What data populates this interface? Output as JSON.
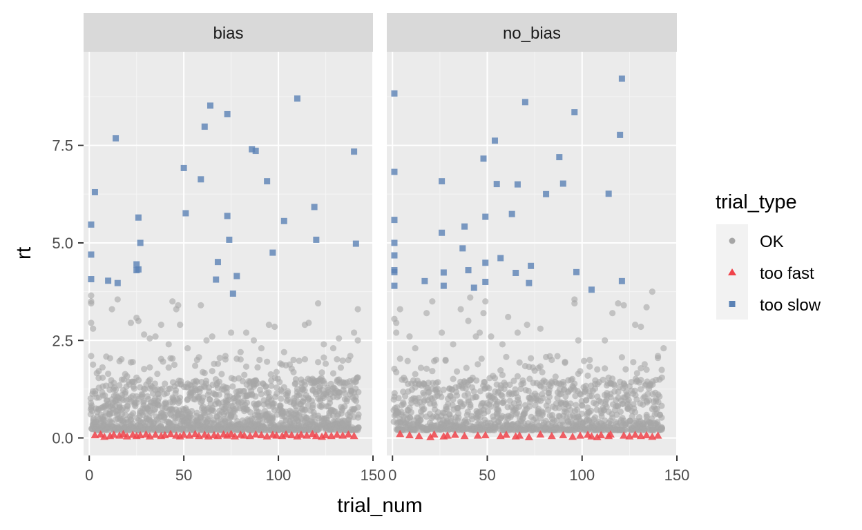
{
  "chart_data": {
    "type": "scatter",
    "facet_by": "subject type",
    "panels": [
      {
        "label": "bias"
      },
      {
        "label": "no_bias"
      }
    ],
    "xlabel": "trial_num",
    "ylabel": "rt",
    "xlim": [
      -3,
      150
    ],
    "ylim": [
      -0.45,
      9.9
    ],
    "x_ticks": [
      0,
      50,
      100,
      150
    ],
    "y_ticks": [
      0.0,
      2.5,
      5.0,
      7.5
    ],
    "x_tick_labels": [
      "0",
      "50",
      "100",
      "150"
    ],
    "y_tick_labels": [
      "0.0",
      "2.5",
      "5.0",
      "7.5"
    ],
    "grid": true,
    "legend": {
      "title": "trial_type",
      "position": "right",
      "entries": [
        {
          "label": "OK",
          "shape": "circle",
          "color": "#a6a6a6"
        },
        {
          "label": "too fast",
          "shape": "triangle",
          "color": "#f0444b"
        },
        {
          "label": "too slow",
          "shape": "square",
          "color": "#5b82b5"
        }
      ]
    },
    "series": [
      {
        "name": "too slow",
        "panel": "bias",
        "points": [
          [
            1,
            5.47
          ],
          [
            1,
            4.7
          ],
          [
            1,
            4.07
          ],
          [
            3,
            6.3
          ],
          [
            10,
            4.03
          ],
          [
            14,
            7.68
          ],
          [
            15,
            3.97
          ],
          [
            25,
            4.45
          ],
          [
            25,
            4.3
          ],
          [
            26,
            5.65
          ],
          [
            26,
            4.32
          ],
          [
            27,
            5.0
          ],
          [
            50,
            6.92
          ],
          [
            51,
            5.76
          ],
          [
            59,
            6.63
          ],
          [
            61,
            7.98
          ],
          [
            64,
            8.52
          ],
          [
            67,
            4.06
          ],
          [
            68,
            4.51
          ],
          [
            73,
            8.3
          ],
          [
            73,
            5.69
          ],
          [
            74,
            5.08
          ],
          [
            76,
            3.7
          ],
          [
            78,
            4.15
          ],
          [
            86,
            7.4
          ],
          [
            88,
            7.36
          ],
          [
            94,
            6.58
          ],
          [
            97,
            4.75
          ],
          [
            103,
            5.56
          ],
          [
            110,
            8.7
          ],
          [
            119,
            5.92
          ],
          [
            120,
            5.08
          ],
          [
            140,
            7.34
          ],
          [
            141,
            4.98
          ]
        ]
      },
      {
        "name": "too slow",
        "panel": "no_bias",
        "points": [
          [
            1,
            8.83
          ],
          [
            1,
            6.82
          ],
          [
            1,
            5.59
          ],
          [
            1,
            5.0
          ],
          [
            1,
            4.68
          ],
          [
            1,
            4.3
          ],
          [
            1,
            4.25
          ],
          [
            1,
            3.9
          ],
          [
            17,
            4.02
          ],
          [
            26,
            6.58
          ],
          [
            26,
            5.26
          ],
          [
            27,
            4.24
          ],
          [
            27,
            3.9
          ],
          [
            37,
            4.86
          ],
          [
            38,
            5.42
          ],
          [
            40,
            4.3
          ],
          [
            43,
            3.85
          ],
          [
            48,
            7.16
          ],
          [
            49,
            5.67
          ],
          [
            49,
            4.49
          ],
          [
            49,
            4.0
          ],
          [
            54,
            7.62
          ],
          [
            55,
            6.51
          ],
          [
            57,
            4.61
          ],
          [
            63,
            5.74
          ],
          [
            65,
            4.23
          ],
          [
            66,
            6.5
          ],
          [
            70,
            8.61
          ],
          [
            72,
            3.97
          ],
          [
            73,
            4.41
          ],
          [
            81,
            6.25
          ],
          [
            88,
            7.2
          ],
          [
            90,
            6.52
          ],
          [
            96,
            8.35
          ],
          [
            97,
            4.25
          ],
          [
            105,
            3.8
          ],
          [
            114,
            6.26
          ],
          [
            120,
            7.77
          ],
          [
            121,
            4.02
          ],
          [
            121,
            9.21
          ]
        ]
      },
      {
        "name": "too fast",
        "panel": "bias",
        "generated": false,
        "points": [
          [
            3,
            0.07
          ],
          [
            6,
            0.09
          ],
          [
            8,
            0.03
          ],
          [
            11,
            0.05
          ],
          [
            13,
            0.08
          ],
          [
            16,
            0.06
          ],
          [
            18,
            0.1
          ],
          [
            20,
            0.04
          ],
          [
            23,
            0.08
          ],
          [
            25,
            0.05
          ],
          [
            27,
            0.07
          ],
          [
            30,
            0.09
          ],
          [
            32,
            0.04
          ],
          [
            35,
            0.08
          ],
          [
            38,
            0.05
          ],
          [
            40,
            0.07
          ],
          [
            43,
            0.1
          ],
          [
            46,
            0.06
          ],
          [
            48,
            0.04
          ],
          [
            50,
            0.08
          ],
          [
            53,
            0.06
          ],
          [
            56,
            0.1
          ],
          [
            58,
            0.05
          ],
          [
            61,
            0.08
          ],
          [
            63,
            0.04
          ],
          [
            66,
            0.07
          ],
          [
            68,
            0.05
          ],
          [
            71,
            0.09
          ],
          [
            73,
            0.06
          ],
          [
            75,
            0.1
          ],
          [
            77,
            0.04
          ],
          [
            80,
            0.08
          ],
          [
            82,
            0.06
          ],
          [
            85,
            0.05
          ],
          [
            88,
            0.09
          ],
          [
            91,
            0.07
          ],
          [
            94,
            0.04
          ],
          [
            97,
            0.08
          ],
          [
            99,
            0.06
          ],
          [
            102,
            0.05
          ],
          [
            104,
            0.09
          ],
          [
            107,
            0.07
          ],
          [
            110,
            0.04
          ],
          [
            112,
            0.08
          ],
          [
            115,
            0.06
          ],
          [
            118,
            0.1
          ],
          [
            120,
            0.05
          ],
          [
            123,
            0.03
          ],
          [
            125,
            0.07
          ],
          [
            128,
            0.05
          ],
          [
            131,
            0.08
          ],
          [
            134,
            0.06
          ],
          [
            137,
            0.09
          ],
          [
            140,
            0.05
          ]
        ]
      },
      {
        "name": "too fast",
        "panel": "no_bias",
        "points": [
          [
            4,
            0.1
          ],
          [
            9,
            0.07
          ],
          [
            14,
            0.05
          ],
          [
            20,
            0.02
          ],
          [
            22,
            0.09
          ],
          [
            27,
            0.04
          ],
          [
            29,
            0.06
          ],
          [
            33,
            0.08
          ],
          [
            38,
            0.05
          ],
          [
            45,
            0.06
          ],
          [
            49,
            0.07
          ],
          [
            57,
            0.05
          ],
          [
            60,
            0.08
          ],
          [
            65,
            0.04
          ],
          [
            67,
            0.06
          ],
          [
            72,
            0.02
          ],
          [
            78,
            0.09
          ],
          [
            84,
            0.05
          ],
          [
            90,
            0.07
          ],
          [
            95,
            0.03
          ],
          [
            99,
            0.06
          ],
          [
            103,
            0.08
          ],
          [
            105,
            0.04
          ],
          [
            108,
            0.02
          ],
          [
            110,
            0.07
          ],
          [
            114,
            0.05
          ],
          [
            115,
            0.09
          ],
          [
            122,
            0.06
          ],
          [
            125,
            0.04
          ],
          [
            128,
            0.08
          ],
          [
            131,
            0.05
          ],
          [
            134,
            0.07
          ],
          [
            137,
            0.03
          ],
          [
            140,
            0.06
          ]
        ]
      },
      {
        "name": "OK",
        "panel": "bias",
        "outliers": [
          [
            1,
            3.65
          ],
          [
            1,
            3.5
          ],
          [
            1,
            3.45
          ],
          [
            1,
            2.95
          ],
          [
            2,
            2.8
          ],
          [
            1,
            2.1
          ],
          [
            12,
            3.3
          ],
          [
            15,
            3.55
          ],
          [
            22,
            2.95
          ],
          [
            25,
            3.08
          ],
          [
            26,
            3.0
          ],
          [
            29,
            2.65
          ],
          [
            32,
            2.55
          ],
          [
            35,
            2.6
          ],
          [
            38,
            2.9
          ],
          [
            42,
            2.4
          ],
          [
            44,
            3.5
          ],
          [
            46,
            3.3
          ],
          [
            47,
            3.4
          ],
          [
            48,
            2.9
          ],
          [
            52,
            2.3
          ],
          [
            57,
            2.0
          ],
          [
            59,
            3.4
          ],
          [
            62,
            2.5
          ],
          [
            65,
            2.6
          ],
          [
            68,
            1.9
          ],
          [
            72,
            2.1
          ],
          [
            75,
            2.7
          ],
          [
            80,
            2.2
          ],
          [
            83,
            2.7
          ],
          [
            87,
            2.5
          ],
          [
            91,
            2.3
          ],
          [
            95,
            2.9
          ],
          [
            98,
            2.85
          ],
          [
            103,
            2.2
          ],
          [
            108,
            2.0
          ],
          [
            114,
            2.9
          ],
          [
            116,
            2.95
          ],
          [
            121,
            3.45
          ],
          [
            124,
            2.4
          ],
          [
            129,
            2.3
          ],
          [
            132,
            2.55
          ],
          [
            138,
            2.1
          ],
          [
            140,
            2.7
          ],
          [
            142,
            3.3
          ],
          [
            142,
            2.5
          ]
        ]
      },
      {
        "name": "OK",
        "panel": "no_bias",
        "outliers": [
          [
            1,
            3.05
          ],
          [
            2,
            2.95
          ],
          [
            2,
            2.7
          ],
          [
            4,
            3.3
          ],
          [
            9,
            2.6
          ],
          [
            12,
            2.3
          ],
          [
            18,
            3.2
          ],
          [
            21,
            3.5
          ],
          [
            26,
            2.7
          ],
          [
            28,
            2.0
          ],
          [
            32,
            2.4
          ],
          [
            36,
            3.3
          ],
          [
            40,
            3.0
          ],
          [
            41,
            3.6
          ],
          [
            44,
            2.6
          ],
          [
            46,
            2.7
          ],
          [
            48,
            3.2
          ],
          [
            49,
            3.5
          ],
          [
            52,
            2.6
          ],
          [
            58,
            2.4
          ],
          [
            61,
            3.1
          ],
          [
            66,
            2.7
          ],
          [
            71,
            2.9
          ],
          [
            78,
            2.8
          ],
          [
            84,
            2.0
          ],
          [
            91,
            1.95
          ],
          [
            96,
            3.55
          ],
          [
            96,
            3.45
          ],
          [
            98,
            2.5
          ],
          [
            104,
            2.0
          ],
          [
            112,
            2.5
          ],
          [
            116,
            3.2
          ],
          [
            119,
            3.45
          ],
          [
            122,
            3.4
          ],
          [
            128,
            2.9
          ],
          [
            131,
            2.85
          ],
          [
            134,
            3.35
          ],
          [
            137,
            3.75
          ],
          [
            140,
            2.1
          ],
          [
            143,
            2.3
          ]
        ]
      }
    ]
  }
}
